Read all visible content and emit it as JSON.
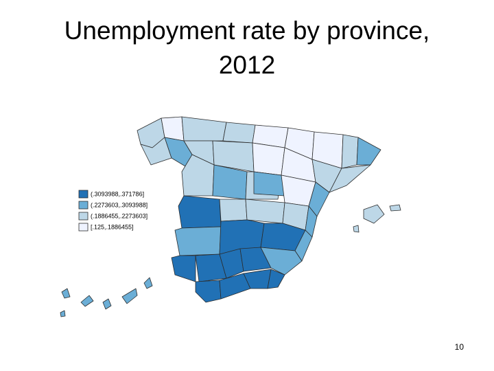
{
  "title_lines": [
    "Unemployment rate by province,",
    "2012"
  ],
  "legend": [
    {
      "label": "(.3093988,.371786]",
      "color": "#2171b5"
    },
    {
      "label": "(.2273603,.3093988]",
      "color": "#6baed6"
    },
    {
      "label": "(.1886455,.2273603]",
      "color": "#bdd7e7"
    },
    {
      "label": "[.125,.1886455]",
      "color": "#eff3ff"
    }
  ],
  "page_number": "10"
}
